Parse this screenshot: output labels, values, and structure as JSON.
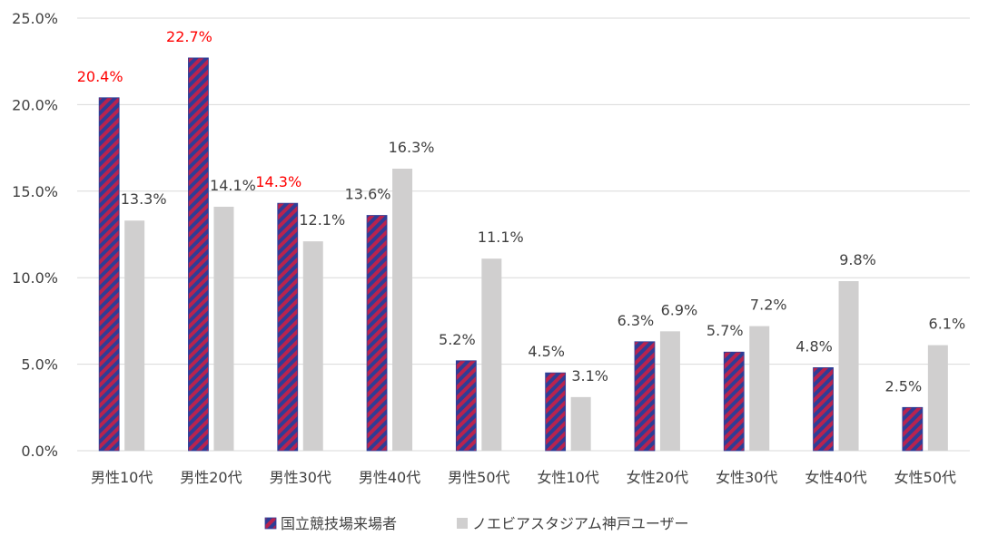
{
  "chart_data": {
    "type": "bar",
    "title": "",
    "xlabel": "",
    "ylabel": "",
    "ylim": [
      0,
      25
    ],
    "ytick_step": 5,
    "ytick_labels": [
      "0.0%",
      "5.0%",
      "10.0%",
      "15.0%",
      "20.0%",
      "25.0%"
    ],
    "grid": true,
    "legend_position": "bottom",
    "categories": [
      "男性10代",
      "男性20代",
      "男性30代",
      "男性40代",
      "男性50代",
      "女性10代",
      "女性20代",
      "女性30代",
      "女性40代",
      "女性50代"
    ],
    "series": [
      {
        "name": "国立競技場来場者",
        "values": [
          20.4,
          22.7,
          14.3,
          13.6,
          5.2,
          4.5,
          6.3,
          5.7,
          4.8,
          2.5
        ],
        "labels": [
          "20.4%",
          "22.7%",
          "14.3%",
          "13.6%",
          "5.2%",
          "4.5%",
          "6.3%",
          "5.7%",
          "4.8%",
          "2.5%"
        ],
        "label_colors": [
          "#ff0000",
          "#ff0000",
          "#ff0000",
          "#404040",
          "#404040",
          "#404040",
          "#404040",
          "#404040",
          "#404040",
          "#404040"
        ],
        "fill": "hatched",
        "color_a": "#2f3d96",
        "color_b": "#b8234f"
      },
      {
        "name": "ノエビアスタジアム神戸ユーザー",
        "values": [
          13.3,
          14.1,
          12.1,
          16.3,
          11.1,
          3.1,
          6.9,
          7.2,
          9.8,
          6.1
        ],
        "labels": [
          "13.3%",
          "14.1%",
          "12.1%",
          "16.3%",
          "11.1%",
          "3.1%",
          "6.9%",
          "7.2%",
          "9.8%",
          "6.1%"
        ],
        "color": "#d0cfcf"
      }
    ]
  },
  "colors": {
    "axis_text": "#404040",
    "gridline": "#d9d9d9",
    "highlight_text": "#ff0000"
  }
}
